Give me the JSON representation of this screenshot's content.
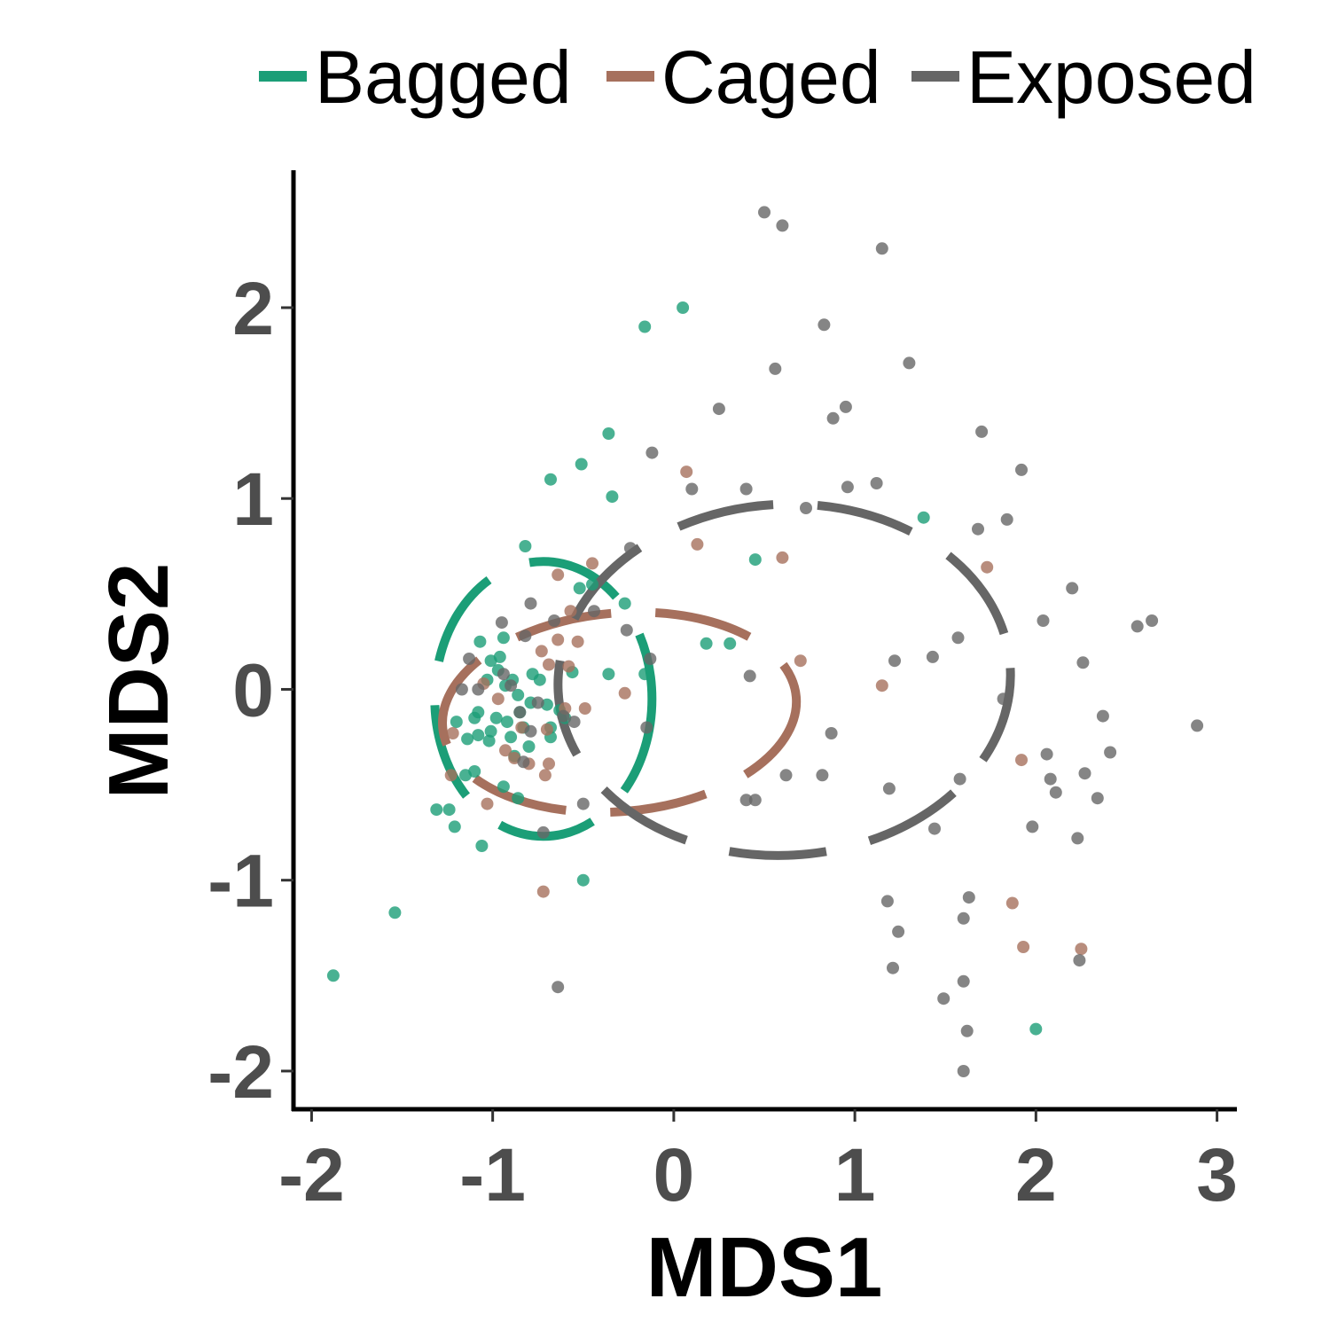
{
  "chart_data": {
    "type": "scatter",
    "title": "",
    "xlabel": "MDS1",
    "ylabel": "MDS2",
    "xlim": [
      -2.1,
      3.1
    ],
    "ylim": [
      -2.2,
      2.72
    ],
    "xticks": [
      -2,
      -1,
      0,
      1,
      2,
      3
    ],
    "yticks": [
      -2,
      -1,
      0,
      1,
      2
    ],
    "xtick_labels": [
      "-2",
      "-1",
      "0",
      "1",
      "2",
      "3"
    ],
    "ytick_labels": [
      "-2",
      "-1",
      "0",
      "1",
      "2"
    ],
    "grid": false,
    "legend_position": "top",
    "series": [
      {
        "name": "Bagged",
        "color": "#1b9e77",
        "points": [
          [
            -1.88,
            -1.5
          ],
          [
            -1.54,
            -1.17
          ],
          [
            -0.16,
            1.9
          ],
          [
            0.05,
            2.0
          ],
          [
            -0.36,
            1.34
          ],
          [
            -0.51,
            1.18
          ],
          [
            -0.68,
            1.1
          ],
          [
            -0.34,
            1.01
          ],
          [
            -0.82,
            0.75
          ],
          [
            -0.45,
            0.55
          ],
          [
            -0.27,
            0.45
          ],
          [
            0.18,
            0.24
          ],
          [
            0.31,
            0.24
          ],
          [
            0.45,
            0.68
          ],
          [
            1.38,
            0.9
          ],
          [
            2.0,
            -1.78
          ],
          [
            -0.5,
            -1.0
          ],
          [
            -1.06,
            -0.82
          ],
          [
            -1.21,
            -0.72
          ],
          [
            -1.31,
            -0.63
          ],
          [
            -1.24,
            -0.63
          ],
          [
            -0.86,
            -0.57
          ],
          [
            -0.94,
            -0.51
          ],
          [
            -1.1,
            -0.43
          ],
          [
            -0.8,
            -0.3
          ],
          [
            -0.88,
            -0.35
          ],
          [
            -0.83,
            -0.2
          ],
          [
            -0.92,
            -0.17
          ],
          [
            -1.01,
            -0.22
          ],
          [
            -1.08,
            -0.24
          ],
          [
            -1.14,
            -0.26
          ],
          [
            -1.08,
            -0.12
          ],
          [
            -0.98,
            -0.15
          ],
          [
            -1.2,
            -0.17
          ],
          [
            -1.02,
            -0.27
          ],
          [
            -0.68,
            -0.25
          ],
          [
            -0.63,
            -0.11
          ],
          [
            -0.7,
            -0.08
          ],
          [
            -0.79,
            -0.07
          ],
          [
            -0.86,
            -0.03
          ],
          [
            -0.74,
            0.05
          ],
          [
            -0.78,
            0.08
          ],
          [
            -0.89,
            0.05
          ],
          [
            -0.93,
            0.02
          ],
          [
            -0.97,
            0.1
          ],
          [
            -1.03,
            0.05
          ],
          [
            -1.01,
            0.15
          ],
          [
            -0.96,
            0.17
          ],
          [
            -0.56,
            0.09
          ],
          [
            -0.36,
            0.08
          ],
          [
            -0.16,
            0.08
          ],
          [
            -0.52,
            0.53
          ],
          [
            -0.68,
            -0.2
          ],
          [
            -0.6,
            -0.15
          ],
          [
            -0.94,
            0.27
          ],
          [
            -1.07,
            0.25
          ],
          [
            -1.1,
            -0.15
          ],
          [
            -0.9,
            -0.25
          ],
          [
            -0.85,
            -0.12
          ],
          [
            -1.15,
            -0.45
          ]
        ]
      },
      {
        "name": "Caged",
        "color": "#a6705d",
        "points": [
          [
            0.07,
            1.14
          ],
          [
            0.13,
            0.76
          ],
          [
            0.6,
            0.69
          ],
          [
            -0.45,
            0.66
          ],
          [
            -0.64,
            0.6
          ],
          [
            -0.57,
            0.41
          ],
          [
            -0.53,
            0.25
          ],
          [
            -0.64,
            0.26
          ],
          [
            -0.73,
            0.2
          ],
          [
            -0.69,
            0.13
          ],
          [
            -0.27,
            -0.02
          ],
          [
            -0.6,
            -0.1
          ],
          [
            -0.49,
            -0.1
          ],
          [
            -0.7,
            -0.21
          ],
          [
            -1.22,
            -0.23
          ],
          [
            -1.23,
            -0.45
          ],
          [
            -1.03,
            -0.6
          ],
          [
            -0.93,
            -0.32
          ],
          [
            -0.88,
            -0.36
          ],
          [
            -0.8,
            -0.39
          ],
          [
            -0.69,
            -0.39
          ],
          [
            -0.71,
            -0.45
          ],
          [
            -0.72,
            -1.06
          ],
          [
            -1.05,
            0.03
          ],
          [
            -0.58,
            0.12
          ],
          [
            0.7,
            0.15
          ],
          [
            1.15,
            0.02
          ],
          [
            1.73,
            0.64
          ],
          [
            1.92,
            -0.37
          ],
          [
            1.87,
            -1.12
          ],
          [
            1.93,
            -1.35
          ],
          [
            2.25,
            -1.36
          ],
          [
            -0.97,
            -0.05
          ],
          [
            -0.84,
            -0.2
          ]
        ]
      },
      {
        "name": "Exposed",
        "color": "#666666",
        "points": [
          [
            0.5,
            2.5
          ],
          [
            0.6,
            2.43
          ],
          [
            1.15,
            2.31
          ],
          [
            0.83,
            1.91
          ],
          [
            0.56,
            1.68
          ],
          [
            1.3,
            1.71
          ],
          [
            0.25,
            1.47
          ],
          [
            0.95,
            1.48
          ],
          [
            0.88,
            1.42
          ],
          [
            -0.12,
            1.24
          ],
          [
            1.7,
            1.35
          ],
          [
            1.92,
            1.15
          ],
          [
            0.1,
            1.05
          ],
          [
            0.4,
            1.05
          ],
          [
            0.96,
            1.06
          ],
          [
            1.12,
            1.08
          ],
          [
            0.73,
            0.95
          ],
          [
            1.84,
            0.89
          ],
          [
            1.68,
            0.84
          ],
          [
            -0.24,
            0.74
          ],
          [
            2.2,
            0.53
          ],
          [
            2.04,
            0.36
          ],
          [
            2.56,
            0.33
          ],
          [
            2.64,
            0.36
          ],
          [
            1.57,
            0.27
          ],
          [
            1.43,
            0.17
          ],
          [
            1.22,
            0.15
          ],
          [
            2.26,
            0.14
          ],
          [
            2.37,
            -0.14
          ],
          [
            2.89,
            -0.19
          ],
          [
            2.41,
            -0.33
          ],
          [
            2.06,
            -0.34
          ],
          [
            2.08,
            -0.47
          ],
          [
            2.11,
            -0.54
          ],
          [
            2.27,
            -0.44
          ],
          [
            2.34,
            -0.57
          ],
          [
            1.98,
            -0.72
          ],
          [
            2.23,
            -0.78
          ],
          [
            1.19,
            -0.52
          ],
          [
            0.82,
            -0.45
          ],
          [
            0.87,
            -0.23
          ],
          [
            0.62,
            -0.45
          ],
          [
            1.58,
            -0.47
          ],
          [
            1.82,
            -0.05
          ],
          [
            1.44,
            -0.73
          ],
          [
            1.63,
            -1.09
          ],
          [
            1.6,
            -1.2
          ],
          [
            1.18,
            -1.11
          ],
          [
            1.24,
            -1.27
          ],
          [
            1.21,
            -1.46
          ],
          [
            1.6,
            -1.53
          ],
          [
            1.49,
            -1.62
          ],
          [
            1.62,
            -1.79
          ],
          [
            1.6,
            -2.0
          ],
          [
            2.24,
            -1.42
          ],
          [
            -0.64,
            -1.56
          ],
          [
            -0.72,
            -0.75
          ],
          [
            0.4,
            -0.58
          ],
          [
            0.45,
            -0.58
          ],
          [
            0.42,
            0.07
          ],
          [
            -0.15,
            -0.2
          ],
          [
            -0.13,
            0.16
          ],
          [
            -0.26,
            0.31
          ],
          [
            -0.44,
            0.41
          ],
          [
            -0.66,
            0.36
          ],
          [
            -0.79,
            0.45
          ],
          [
            -0.82,
            0.28
          ],
          [
            -0.95,
            0.35
          ],
          [
            -1.13,
            0.16
          ],
          [
            -1.17,
            0.0
          ],
          [
            -1.08,
            0.0
          ],
          [
            -0.94,
            0.08
          ],
          [
            -0.9,
            0.02
          ],
          [
            -0.85,
            -0.12
          ],
          [
            -0.75,
            -0.07
          ],
          [
            -0.61,
            -0.14
          ],
          [
            -0.79,
            -0.22
          ],
          [
            -0.55,
            -0.17
          ],
          [
            -0.83,
            -0.38
          ],
          [
            -0.5,
            -0.6
          ]
        ]
      }
    ],
    "ellipses": [
      {
        "series": "Bagged",
        "cx": -0.72,
        "cy": -0.05,
        "rx": 0.6,
        "ry": 0.72,
        "rotation_deg": 0
      },
      {
        "series": "Caged",
        "cx": -0.3,
        "cy": -0.12,
        "rx": 0.98,
        "ry": 0.52,
        "rotation_deg": -5
      },
      {
        "series": "Exposed",
        "cx": 0.61,
        "cy": 0.05,
        "rx": 1.25,
        "ry": 0.92,
        "rotation_deg": -3
      }
    ]
  }
}
